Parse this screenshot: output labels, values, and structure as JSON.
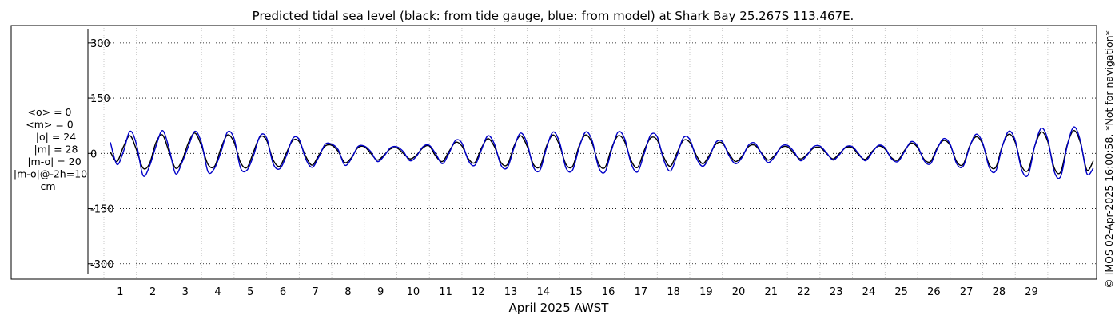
{
  "chart_data": {
    "type": "line",
    "title": "Predicted tidal sea level (black: from tide gauge, blue: from model) at Shark Bay 25.267S 113.467E.",
    "xlabel": "April 2025 AWST",
    "ylabel": "",
    "x_ticks": [
      "1",
      "2",
      "3",
      "4",
      "5",
      "6",
      "7",
      "8",
      "9",
      "10",
      "11",
      "12",
      "13",
      "14",
      "15",
      "16",
      "17",
      "18",
      "19",
      "20",
      "21",
      "22",
      "23",
      "24",
      "25",
      "26",
      "27",
      "28",
      "29"
    ],
    "y_ticks": [
      "300",
      "150",
      "0",
      "-150",
      "-300"
    ],
    "y_tick_values": [
      300,
      150,
      0,
      -150,
      -300
    ],
    "ylim": [
      -320,
      330
    ],
    "xlim": [
      0,
      30.5
    ],
    "grid": true,
    "stats": [
      "<o> = 0",
      "<m> = 0",
      "|o| = 24",
      "|m| = 28",
      "|m-o| = 20",
      "|m-o|@-2h=10",
      "cm"
    ],
    "copyright": "© IMOS 02-Apr-2025 16:00:58. *Not for navigation*",
    "colors": {
      "gauge": "#000000",
      "model": "#0000c8",
      "grid": "#bbbbbb"
    },
    "series": [
      {
        "name": "tide gauge",
        "x": [
          0.2,
          0.4,
          0.6,
          0.8,
          1.0,
          1.2,
          1.4,
          1.6,
          1.8,
          2.0,
          2.2,
          2.4,
          2.6,
          2.8,
          3.0,
          3.2,
          3.4,
          3.6,
          3.8,
          4.0,
          4.2,
          4.4,
          4.6,
          4.8,
          5.0,
          5.2,
          5.4,
          5.6,
          5.8,
          6.0,
          6.2,
          6.4,
          6.6,
          6.8,
          7.0,
          7.2,
          7.4,
          7.6,
          7.8,
          8.0,
          8.2,
          8.4,
          8.6,
          8.8,
          9.0,
          9.2,
          9.4,
          9.6,
          9.8,
          10.0,
          10.2,
          10.4,
          10.6,
          10.8,
          11.0,
          11.2,
          11.4,
          11.6,
          11.8,
          12.0,
          12.2,
          12.4,
          12.6,
          12.8,
          13.0,
          13.2,
          13.4,
          13.6,
          13.8,
          14.0,
          14.2,
          14.4,
          14.6,
          14.8,
          15.0,
          15.2,
          15.4,
          15.6,
          15.8,
          16.0,
          16.2,
          16.4,
          16.6,
          16.8,
          17.0,
          17.2,
          17.4,
          17.6,
          17.8,
          18.0,
          18.2,
          18.4,
          18.6,
          18.8,
          19.0,
          19.2,
          19.4,
          19.6,
          19.8,
          20.0,
          20.2,
          20.4,
          20.6,
          20.8,
          21.0,
          21.2,
          21.4,
          21.6,
          21.8,
          22.0,
          22.2,
          22.4,
          22.6,
          22.8,
          23.0,
          23.2,
          23.4,
          23.6,
          23.8,
          24.0,
          24.2,
          24.4,
          24.6,
          24.8,
          25.0,
          25.2,
          25.4,
          25.6,
          25.8,
          26.0,
          26.2,
          26.4,
          26.6,
          26.8,
          27.0,
          27.2,
          27.4,
          27.6,
          27.8,
          28.0,
          28.2,
          28.4,
          28.6,
          28.8,
          29.0,
          29.2,
          29.4,
          29.6,
          29.8,
          30.0,
          30.2,
          30.4
        ],
        "values": [
          4,
          -22,
          18,
          48,
          10,
          -40,
          -28,
          30,
          50,
          5,
          -40,
          -20,
          30,
          55,
          20,
          -30,
          -35,
          15,
          50,
          30,
          -25,
          -38,
          5,
          45,
          35,
          -18,
          -35,
          0,
          35,
          32,
          -8,
          -32,
          -5,
          20,
          22,
          5,
          -25,
          -12,
          15,
          18,
          0,
          -18,
          -5,
          12,
          15,
          0,
          -15,
          -5,
          15,
          20,
          -8,
          -22,
          5,
          30,
          20,
          -15,
          -25,
          15,
          40,
          18,
          -25,
          -30,
          20,
          48,
          20,
          -30,
          -35,
          20,
          50,
          22,
          -30,
          -35,
          20,
          50,
          28,
          -28,
          -38,
          15,
          48,
          32,
          -20,
          -38,
          8,
          42,
          36,
          -10,
          -35,
          0,
          35,
          30,
          -5,
          -28,
          -5,
          25,
          28,
          0,
          -22,
          -8,
          18,
          22,
          2,
          -18,
          -6,
          15,
          18,
          0,
          -15,
          -3,
          14,
          16,
          0,
          -15,
          0,
          16,
          15,
          -5,
          -16,
          5,
          20,
          12,
          -12,
          -18,
          8,
          28,
          16,
          -16,
          -22,
          15,
          35,
          22,
          -22,
          -30,
          20,
          45,
          25,
          -30,
          -38,
          20,
          52,
          30,
          -35,
          -45,
          20,
          58,
          32,
          -40,
          -50,
          25,
          62,
          30,
          -45,
          -20
        ]
      },
      {
        "name": "model",
        "x": [
          0.2,
          0.4,
          0.6,
          0.8,
          1.0,
          1.2,
          1.4,
          1.6,
          1.8,
          2.0,
          2.2,
          2.4,
          2.6,
          2.8,
          3.0,
          3.2,
          3.4,
          3.6,
          3.8,
          4.0,
          4.2,
          4.4,
          4.6,
          4.8,
          5.0,
          5.2,
          5.4,
          5.6,
          5.8,
          6.0,
          6.2,
          6.4,
          6.6,
          6.8,
          7.0,
          7.2,
          7.4,
          7.6,
          7.8,
          8.0,
          8.2,
          8.4,
          8.6,
          8.8,
          9.0,
          9.2,
          9.4,
          9.6,
          9.8,
          10.0,
          10.2,
          10.4,
          10.6,
          10.8,
          11.0,
          11.2,
          11.4,
          11.6,
          11.8,
          12.0,
          12.2,
          12.4,
          12.6,
          12.8,
          13.0,
          13.2,
          13.4,
          13.6,
          13.8,
          14.0,
          14.2,
          14.4,
          14.6,
          14.8,
          15.0,
          15.2,
          15.4,
          15.6,
          15.8,
          16.0,
          16.2,
          16.4,
          16.6,
          16.8,
          17.0,
          17.2,
          17.4,
          17.6,
          17.8,
          18.0,
          18.2,
          18.4,
          18.6,
          18.8,
          19.0,
          19.2,
          19.4,
          19.6,
          19.8,
          20.0,
          20.2,
          20.4,
          20.6,
          20.8,
          21.0,
          21.2,
          21.4,
          21.6,
          21.8,
          22.0,
          22.2,
          22.4,
          22.6,
          22.8,
          23.0,
          23.2,
          23.4,
          23.6,
          23.8,
          24.0,
          24.2,
          24.4,
          24.6,
          24.8,
          25.0,
          25.2,
          25.4,
          25.6,
          25.8,
          26.0,
          26.2,
          26.4,
          26.6,
          26.8,
          27.0,
          27.2,
          27.4,
          27.6,
          27.8,
          28.0,
          28.2,
          28.4,
          28.6,
          28.8,
          29.0,
          29.2,
          29.4,
          29.6,
          29.8,
          30.0,
          30.2,
          30.4
        ],
        "values": [
          30,
          -30,
          5,
          60,
          25,
          -60,
          -35,
          20,
          62,
          15,
          -55,
          -25,
          20,
          60,
          28,
          -50,
          -40,
          5,
          58,
          40,
          -40,
          -45,
          -5,
          48,
          42,
          -28,
          -42,
          -8,
          40,
          38,
          -15,
          -38,
          -10,
          25,
          25,
          10,
          -32,
          -15,
          18,
          20,
          5,
          -22,
          -8,
          15,
          18,
          5,
          -20,
          -8,
          18,
          22,
          -2,
          -28,
          0,
          35,
          28,
          -20,
          -32,
          10,
          48,
          25,
          -32,
          -38,
          15,
          55,
          28,
          -38,
          -45,
          15,
          58,
          30,
          -40,
          -45,
          15,
          58,
          35,
          -38,
          -50,
          10,
          58,
          40,
          -28,
          -50,
          0,
          50,
          45,
          -18,
          -48,
          -8,
          42,
          38,
          -12,
          -35,
          -10,
          30,
          32,
          -5,
          -28,
          -12,
          22,
          28,
          0,
          -25,
          -10,
          18,
          22,
          5,
          -20,
          -5,
          18,
          20,
          2,
          -18,
          -3,
          18,
          18,
          -2,
          -20,
          2,
          22,
          15,
          -15,
          -22,
          5,
          32,
          20,
          -20,
          -28,
          12,
          40,
          25,
          -28,
          -35,
          18,
          52,
          28,
          -38,
          -48,
          18,
          60,
          35,
          -45,
          -58,
          20,
          68,
          38,
          -50,
          -62,
          22,
          72,
          35,
          -55,
          -40
        ]
      }
    ]
  }
}
